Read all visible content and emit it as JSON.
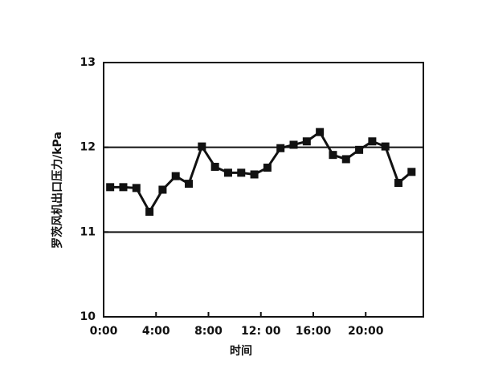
{
  "chart_data": {
    "type": "line",
    "x_label": "时间",
    "y_label": "罗茨风机出口压力/kPa",
    "x": [
      0.5,
      1.5,
      2.5,
      3.5,
      4.5,
      5.5,
      6.5,
      7.5,
      8.5,
      9.5,
      10.5,
      11.5,
      12.5,
      13.5,
      14.5,
      15.5,
      16.5,
      17.5,
      18.5,
      19.5,
      20.5,
      21.5,
      22.5,
      23.5
    ],
    "series": [
      {
        "color": "#111111",
        "values": [
          11.53,
          11.53,
          11.52,
          11.24,
          11.5,
          11.66,
          11.57,
          12.01,
          11.77,
          11.7,
          11.7,
          11.68,
          11.76,
          11.99,
          12.03,
          12.07,
          12.18,
          11.91,
          11.86,
          11.97,
          12.07,
          12.01,
          11.58,
          11.71
        ]
      }
    ],
    "xlim": [
      0,
      24.4
    ],
    "xticks": [
      {
        "value": 0,
        "label": "0:00"
      },
      {
        "value": 4,
        "label": "4:00"
      },
      {
        "value": 8,
        "label": "8:00"
      },
      {
        "value": 12,
        "label": "12: 00"
      },
      {
        "value": 16,
        "label": "16:00"
      },
      {
        "value": 20,
        "label": "20:00"
      }
    ],
    "ylim": [
      10,
      13
    ],
    "yticks": [
      10,
      11,
      12,
      13
    ],
    "reference_lines": [
      11,
      12
    ]
  }
}
